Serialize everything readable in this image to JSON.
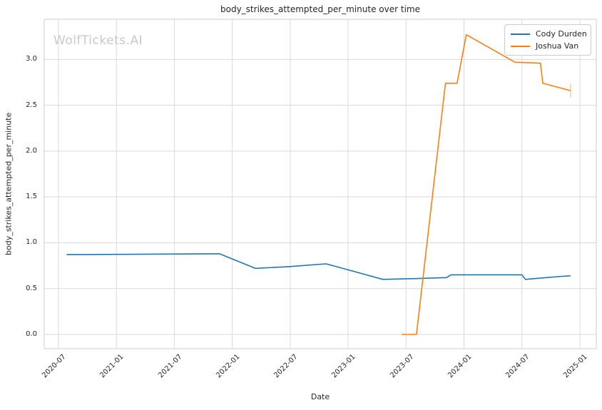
{
  "chart_data": {
    "type": "line",
    "title": "body_strikes_attempted_per_minute over time",
    "xlabel": "Date",
    "ylabel": "body_strikes_attempted_per_minute",
    "watermark": "WolfTickets.AI",
    "grid": true,
    "legend_position": "upper right",
    "x_ticks": [
      "2020-07",
      "2021-01",
      "2021-07",
      "2022-01",
      "2022-07",
      "2023-01",
      "2023-07",
      "2024-01",
      "2024-07",
      "2025-01"
    ],
    "y_ticks": [
      0.0,
      0.5,
      1.0,
      1.5,
      2.0,
      2.5,
      3.0
    ],
    "xlim_years": [
      2020.377,
      2025.142
    ],
    "ylim": [
      -0.156,
      3.439
    ],
    "colors": {
      "grid": "#d9d9d9",
      "spine": "#cccccc",
      "text": "#262626",
      "watermark": "#c9c9c9"
    },
    "series": [
      {
        "name": "Cody Durden",
        "color": "#1f77b4",
        "end_tick": false,
        "points": [
          {
            "date": "2020-07",
            "x": 2020.57,
            "y": 0.87
          },
          {
            "date": "2021-11",
            "x": 2021.89,
            "y": 0.88
          },
          {
            "date": "2022-03",
            "x": 2022.2,
            "y": 0.72
          },
          {
            "date": "2022-06",
            "x": 2022.49,
            "y": 0.74
          },
          {
            "date": "2022-10",
            "x": 2022.81,
            "y": 0.77
          },
          {
            "date": "2023-04",
            "x": 2023.3,
            "y": 0.6
          },
          {
            "date": "2023-08",
            "x": 2023.61,
            "y": 0.61
          },
          {
            "date": "2023-11",
            "x": 2023.85,
            "y": 0.62
          },
          {
            "date": "2023-11",
            "x": 2023.89,
            "y": 0.65
          },
          {
            "date": "2024-06",
            "x": 2024.5,
            "y": 0.65
          },
          {
            "date": "2024-07",
            "x": 2024.53,
            "y": 0.6
          },
          {
            "date": "2024-10",
            "x": 2024.81,
            "y": 0.63
          },
          {
            "date": "2024-12",
            "x": 2024.92,
            "y": 0.64
          }
        ]
      },
      {
        "name": "Joshua Van",
        "color": "#ff7f0e",
        "end_tick": true,
        "points": [
          {
            "date": "2023-06",
            "x": 2023.46,
            "y": 0.0
          },
          {
            "date": "2023-08",
            "x": 2023.59,
            "y": 0.0
          },
          {
            "date": "2023-11",
            "x": 2023.84,
            "y": 2.74
          },
          {
            "date": "2023-12",
            "x": 2023.94,
            "y": 2.74
          },
          {
            "date": "2024-01",
            "x": 2024.02,
            "y": 3.27
          },
          {
            "date": "2024-06",
            "x": 2024.44,
            "y": 2.97
          },
          {
            "date": "2024-08",
            "x": 2024.66,
            "y": 2.96
          },
          {
            "date": "2024-09",
            "x": 2024.68,
            "y": 2.74
          },
          {
            "date": "2024-12",
            "x": 2024.92,
            "y": 2.66
          }
        ]
      }
    ]
  }
}
